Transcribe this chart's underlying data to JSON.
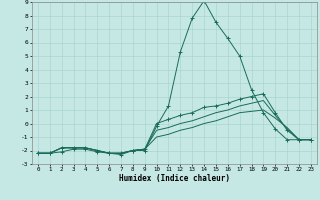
{
  "xlabel": "Humidex (Indice chaleur)",
  "background_color": "#c5e8e5",
  "grid_color": "#aad4d0",
  "line_color": "#1a6b5a",
  "xlim": [
    -0.5,
    23.5
  ],
  "ylim": [
    -3,
    9
  ],
  "xticks": [
    0,
    1,
    2,
    3,
    4,
    5,
    6,
    7,
    8,
    9,
    10,
    11,
    12,
    13,
    14,
    15,
    16,
    17,
    18,
    19,
    20,
    21,
    22,
    23
  ],
  "yticks": [
    -3,
    -2,
    -1,
    0,
    1,
    2,
    3,
    4,
    5,
    6,
    7,
    8,
    9
  ],
  "series": [
    {
      "x": [
        0,
        1,
        2,
        3,
        4,
        5,
        6,
        7,
        8,
        9,
        10,
        11,
        12,
        13,
        14,
        15,
        16,
        17,
        18,
        19,
        20,
        21,
        22,
        23
      ],
      "y": [
        -2.2,
        -2.2,
        -2.1,
        -1.9,
        -1.9,
        -2.1,
        -2.2,
        -2.3,
        -2.0,
        -2.0,
        -0.2,
        1.3,
        5.3,
        7.8,
        9.1,
        7.5,
        6.3,
        5.0,
        2.5,
        0.8,
        -0.4,
        -1.2,
        -1.2,
        -1.2
      ],
      "has_markers": true
    },
    {
      "x": [
        0,
        1,
        2,
        3,
        4,
        5,
        6,
        7,
        8,
        9,
        10,
        11,
        12,
        13,
        14,
        15,
        16,
        17,
        18,
        19,
        20,
        21,
        22,
        23
      ],
      "y": [
        -2.2,
        -2.2,
        -1.8,
        -1.8,
        -1.8,
        -2.0,
        -2.2,
        -2.2,
        -2.0,
        -1.9,
        0.0,
        0.3,
        0.6,
        0.8,
        1.2,
        1.3,
        1.5,
        1.8,
        2.0,
        2.2,
        0.8,
        -0.5,
        -1.2,
        -1.2
      ],
      "has_markers": true
    },
    {
      "x": [
        0,
        1,
        2,
        3,
        4,
        5,
        6,
        7,
        8,
        9,
        10,
        11,
        12,
        13,
        14,
        15,
        16,
        17,
        18,
        19,
        20,
        21,
        22,
        23
      ],
      "y": [
        -2.2,
        -2.2,
        -1.8,
        -1.8,
        -1.8,
        -2.0,
        -2.2,
        -2.2,
        -2.0,
        -1.9,
        -0.5,
        -0.3,
        0.0,
        0.2,
        0.5,
        0.8,
        1.0,
        1.3,
        1.5,
        1.7,
        0.6,
        -0.4,
        -1.2,
        -1.2
      ],
      "has_markers": false
    },
    {
      "x": [
        0,
        1,
        2,
        3,
        4,
        5,
        6,
        7,
        8,
        9,
        10,
        11,
        12,
        13,
        14,
        15,
        16,
        17,
        18,
        19,
        20,
        21,
        22,
        23
      ],
      "y": [
        -2.2,
        -2.2,
        -1.8,
        -1.8,
        -1.8,
        -2.0,
        -2.2,
        -2.2,
        -2.0,
        -1.9,
        -1.0,
        -0.8,
        -0.5,
        -0.3,
        0.0,
        0.2,
        0.5,
        0.8,
        0.9,
        1.0,
        0.4,
        -0.3,
        -1.2,
        -1.2
      ],
      "has_markers": false
    }
  ]
}
